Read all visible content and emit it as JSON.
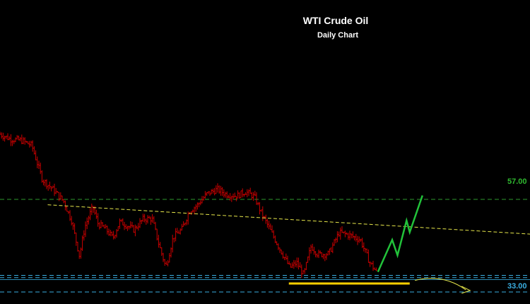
{
  "chart_data": {
    "type": "candlestick",
    "title": "WTI Crude Oil",
    "subtitle": "Daily Chart",
    "ylim": [
      28.5,
      80
    ],
    "grid": false,
    "colors": {
      "background": "#000000",
      "bars": "#cc0000",
      "resistance": "#2e9a2e",
      "support": "#3aaee0",
      "trendline": "#e6e64a",
      "base": "#ffd000",
      "projection": "#22c23a"
    },
    "levels": [
      {
        "label": "57.00",
        "value": 57.0,
        "color": "#2e9a2e",
        "style": "dashed"
      },
      {
        "label": "33.00",
        "value": 33.0,
        "color": "#3aaee0",
        "style": "dashed"
      }
    ],
    "support_band": [
      36.2,
      36.7,
      37.3
    ],
    "base_line": {
      "value": 35.2,
      "color": "#ffd000"
    },
    "trendline": {
      "from": [
        0.09,
        55.6
      ],
      "to": [
        1.0,
        48.0
      ]
    },
    "series": [
      {
        "values": [
          [
            0.0,
            73.9
          ],
          [
            0.02,
            72.6
          ],
          [
            0.04,
            72.3
          ],
          [
            0.06,
            71.0
          ],
          [
            0.08,
            62.1
          ],
          [
            0.1,
            59.6
          ],
          [
            0.12,
            56.5
          ],
          [
            0.135,
            51.5
          ],
          [
            0.15,
            42.3
          ],
          [
            0.16,
            49.8
          ],
          [
            0.175,
            55.1
          ],
          [
            0.185,
            50.7
          ],
          [
            0.2,
            49.2
          ],
          [
            0.213,
            47.0
          ],
          [
            0.226,
            51.2
          ],
          [
            0.24,
            50.2
          ],
          [
            0.253,
            49.1
          ],
          [
            0.27,
            51.9
          ],
          [
            0.287,
            52.0
          ],
          [
            0.3,
            45.2
          ],
          [
            0.313,
            39.4
          ],
          [
            0.327,
            47.3
          ],
          [
            0.343,
            49.2
          ],
          [
            0.357,
            53.9
          ],
          [
            0.373,
            55.6
          ],
          [
            0.39,
            58.4
          ],
          [
            0.41,
            59.6
          ],
          [
            0.427,
            58.3
          ],
          [
            0.447,
            57.9
          ],
          [
            0.463,
            59.0
          ],
          [
            0.48,
            57.7
          ],
          [
            0.493,
            53.5
          ],
          [
            0.507,
            49.8
          ],
          [
            0.527,
            44.4
          ],
          [
            0.547,
            39.3
          ],
          [
            0.56,
            40.6
          ],
          [
            0.573,
            37.4
          ],
          [
            0.587,
            44.9
          ],
          [
            0.6,
            42.7
          ],
          [
            0.62,
            42.9
          ],
          [
            0.64,
            48.4
          ],
          [
            0.66,
            47.7
          ],
          [
            0.68,
            46.5
          ],
          [
            0.697,
            40.8
          ],
          [
            0.71,
            38.2
          ]
        ]
      }
    ],
    "projection": [
      [
        0.713,
        38.2
      ],
      [
        0.74,
        46.5
      ],
      [
        0.75,
        42.5
      ],
      [
        0.767,
        51.5
      ],
      [
        0.773,
        48.5
      ],
      [
        0.797,
        58.0
      ]
    ],
    "future_arrow": {
      "from": [
        0.783,
        36.0
      ],
      "to": [
        0.887,
        33.2
      ]
    }
  }
}
